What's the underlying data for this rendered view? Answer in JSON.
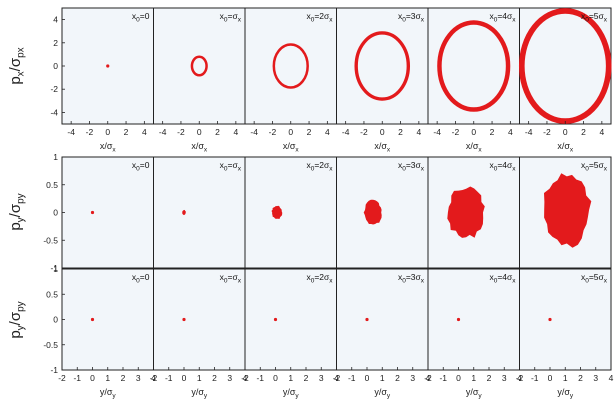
{
  "chart_data": [
    {
      "type": "scatter",
      "row": "px-vs-x",
      "ylabel": "px/σpx",
      "xlabel": "x/σx",
      "xlim": [
        -5,
        5
      ],
      "ylim": [
        -5,
        5
      ],
      "xticks": [
        "-4",
        "-2",
        "0",
        "2",
        "4"
      ],
      "yticks": [
        "4",
        "2",
        "0",
        "-2",
        "-4"
      ],
      "background": "#f2f6fa",
      "marker_color": "#e31a1c",
      "panels": [
        {
          "label": "x0=0",
          "shape": "point",
          "center": [
            0,
            0
          ],
          "r": 0.1
        },
        {
          "label": "x0=σx",
          "shape": "ring",
          "center": [
            0,
            0
          ],
          "r": 0.8
        },
        {
          "label": "x0=2σx",
          "shape": "ring",
          "center": [
            0,
            0
          ],
          "r": 1.85
        },
        {
          "label": "x0=3σx",
          "shape": "ring",
          "center": [
            0,
            0
          ],
          "r": 2.85
        },
        {
          "label": "x0=4σx",
          "shape": "ring",
          "center": [
            0,
            0
          ],
          "r": 3.75
        },
        {
          "label": "x0=5σx",
          "shape": "ring",
          "center": [
            0,
            0
          ],
          "r": 4.75
        }
      ]
    },
    {
      "type": "scatter",
      "row": "py-vs-y-middle",
      "ylabel": "py/σpy",
      "xlabel": "",
      "xlim": [
        -2,
        4
      ],
      "ylim": [
        -1,
        1
      ],
      "xticks": [],
      "yticks": [
        "1",
        "0.5",
        "0",
        "-0.5",
        "-1"
      ],
      "background": "#f2f6fa",
      "marker_color": "#e31a1c",
      "panels": [
        {
          "label": "x0=0",
          "shape": "point",
          "center": [
            0,
            0
          ],
          "r": 0.05
        },
        {
          "label": "x0=σx",
          "shape": "blob",
          "center": [
            0,
            0
          ],
          "rx": 0.12,
          "ry": 0.045
        },
        {
          "label": "x0=2σx",
          "shape": "blob",
          "center": [
            0.1,
            0
          ],
          "rx": 0.35,
          "ry": 0.12
        },
        {
          "label": "x0=3σx",
          "shape": "blob",
          "center": [
            0.4,
            0
          ],
          "rx": 0.6,
          "ry": 0.22
        },
        {
          "label": "x0=4σx",
          "shape": "blob",
          "center": [
            0.5,
            0
          ],
          "rx": 1.2,
          "ry": 0.47
        },
        {
          "label": "x0=5σx",
          "shape": "blob",
          "center": [
            1.1,
            0.05
          ],
          "rx": 1.6,
          "ry": 0.67
        }
      ]
    },
    {
      "type": "scatter",
      "row": "py-vs-y-bottom",
      "ylabel": "py/σpy",
      "xlabel": "y/σy",
      "xlim": [
        -2,
        4
      ],
      "ylim": [
        -1,
        1
      ],
      "xticks": [
        "-2",
        "-1",
        "0",
        "1",
        "2",
        "3",
        "4"
      ],
      "yticks": [
        "1",
        "0.5",
        "0",
        "-0.5",
        "-1"
      ],
      "background": "#f2f6fa",
      "marker_color": "#e31a1c",
      "panels": [
        {
          "label": "x0=0",
          "shape": "point",
          "center": [
            0,
            0
          ],
          "r": 0.05
        },
        {
          "label": "x0=σx",
          "shape": "point",
          "center": [
            0,
            0
          ],
          "r": 0.05
        },
        {
          "label": "x0=2σx",
          "shape": "point",
          "center": [
            0,
            0
          ],
          "r": 0.05
        },
        {
          "label": "x0=3σx",
          "shape": "point",
          "center": [
            0,
            0
          ],
          "r": 0.05
        },
        {
          "label": "x0=4σx",
          "shape": "point",
          "center": [
            0,
            0
          ],
          "r": 0.05
        },
        {
          "label": "x0=5σx",
          "shape": "point",
          "center": [
            0,
            0
          ],
          "r": 0.05
        }
      ]
    }
  ]
}
